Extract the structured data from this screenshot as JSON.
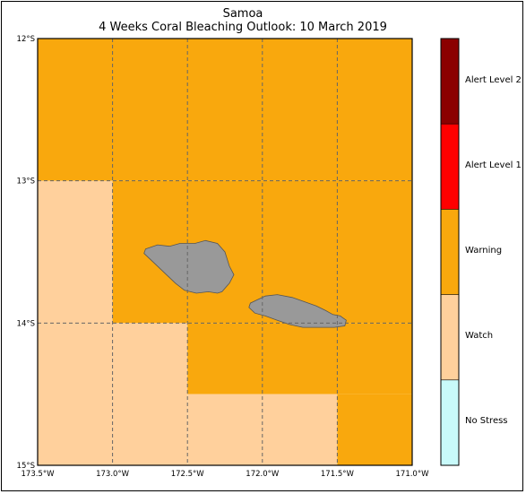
{
  "title": "Samoa",
  "subtitle": "4 Weeks Coral Bleaching Outlook: 10 March 2019",
  "map": {
    "lon_range": [
      -173.5,
      -171.0
    ],
    "lat_range": [
      -15.0,
      -12.0
    ],
    "grid": true,
    "lat_ticks": [
      "12°S",
      "13°S",
      "14°S",
      "15°S"
    ],
    "lon_ticks": [
      "173.5°W",
      "173.0°W",
      "172.5°W",
      "172.0°W",
      "171.5°W",
      "171.0°W"
    ],
    "land_color": "#999999"
  },
  "legend": {
    "placement": "right",
    "levels": [
      {
        "label": "Alert Level 2",
        "color": "#8b0000"
      },
      {
        "label": "Alert Level 1",
        "color": "#ff0000"
      },
      {
        "label": "Warning",
        "color": "#f9a80d"
      },
      {
        "label": "Watch",
        "color": "#ffd09c"
      },
      {
        "label": "No Stress",
        "color": "#c8fafa"
      }
    ]
  },
  "chart_data": {
    "type": "heatmap",
    "cell_size_deg": 0.5,
    "regions": [
      {
        "level": "Warning",
        "lon": [
          -173.5,
          -171.0
        ],
        "lat": [
          -13.0,
          -12.0
        ]
      },
      {
        "level": "Watch",
        "lon": [
          -173.5,
          -173.0
        ],
        "lat": [
          -15.0,
          -13.0
        ]
      },
      {
        "level": "Warning",
        "lon": [
          -173.0,
          -171.0
        ],
        "lat": [
          -14.0,
          -13.0
        ]
      },
      {
        "level": "Watch",
        "lon": [
          -173.0,
          -172.5
        ],
        "lat": [
          -15.0,
          -14.0
        ]
      },
      {
        "level": "Warning",
        "lon": [
          -172.5,
          -171.0
        ],
        "lat": [
          -14.5,
          -14.0
        ]
      },
      {
        "level": "Watch",
        "lon": [
          -172.5,
          -171.5
        ],
        "lat": [
          -15.0,
          -14.5
        ]
      },
      {
        "level": "Warning",
        "lon": [
          -171.5,
          -171.0
        ],
        "lat": [
          -15.0,
          -14.5
        ]
      }
    ],
    "islands": [
      {
        "coords": [
          [
            -172.78,
            -13.48
          ],
          [
            -172.7,
            -13.45
          ],
          [
            -172.62,
            -13.46
          ],
          [
            -172.55,
            -13.44
          ],
          [
            -172.45,
            -13.44
          ],
          [
            -172.38,
            -13.42
          ],
          [
            -172.3,
            -13.44
          ],
          [
            -172.25,
            -13.5
          ],
          [
            -172.22,
            -13.6
          ],
          [
            -172.19,
            -13.66
          ],
          [
            -172.22,
            -13.72
          ],
          [
            -172.27,
            -13.78
          ],
          [
            -172.3,
            -13.79
          ],
          [
            -172.36,
            -13.78
          ],
          [
            -172.44,
            -13.79
          ],
          [
            -172.52,
            -13.77
          ],
          [
            -172.58,
            -13.72
          ],
          [
            -172.66,
            -13.64
          ],
          [
            -172.73,
            -13.57
          ],
          [
            -172.79,
            -13.51
          ]
        ]
      },
      {
        "coords": [
          [
            -172.04,
            -13.84
          ],
          [
            -171.98,
            -13.81
          ],
          [
            -171.9,
            -13.8
          ],
          [
            -171.8,
            -13.82
          ],
          [
            -171.72,
            -13.85
          ],
          [
            -171.64,
            -13.88
          ],
          [
            -171.58,
            -13.91
          ],
          [
            -171.53,
            -13.94
          ],
          [
            -171.48,
            -13.95
          ],
          [
            -171.44,
            -13.98
          ],
          [
            -171.45,
            -14.02
          ],
          [
            -171.52,
            -14.03
          ],
          [
            -171.62,
            -14.03
          ],
          [
            -171.73,
            -14.03
          ],
          [
            -171.82,
            -14.01
          ],
          [
            -171.9,
            -13.98
          ],
          [
            -171.98,
            -13.95
          ],
          [
            -172.05,
            -13.93
          ],
          [
            -172.09,
            -13.89
          ],
          [
            -172.08,
            -13.86
          ]
        ]
      }
    ]
  }
}
